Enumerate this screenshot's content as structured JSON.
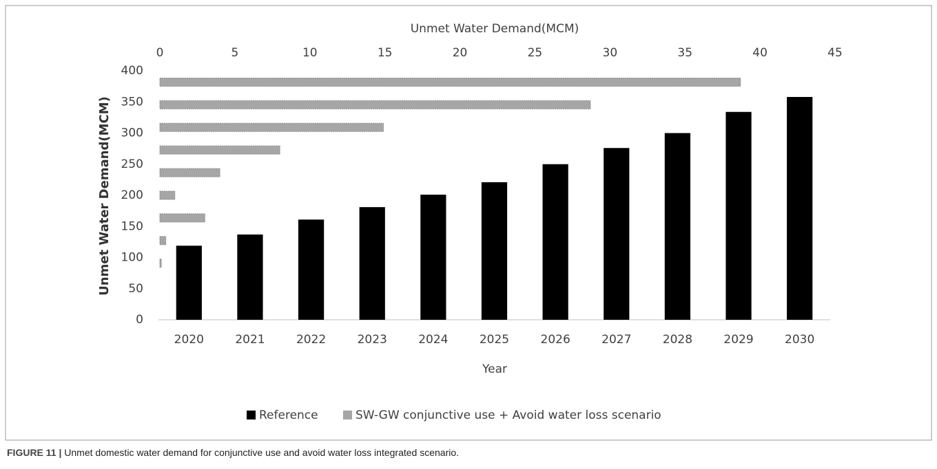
{
  "chart_data": {
    "type": "bar",
    "x2label": "Unmet Water Demand(MCM)",
    "ylabel": "Unmet Water Demand(MCM)",
    "xlabel": "Year",
    "categories": [
      "2020",
      "2021",
      "2022",
      "2023",
      "2024",
      "2025",
      "2026",
      "2027",
      "2028",
      "2029",
      "2030"
    ],
    "series": [
      {
        "name": "Reference",
        "color": "#000000",
        "values": [
          119,
          137,
          161,
          181,
          201,
          221,
          250,
          276,
          300,
          334,
          358
        ]
      },
      {
        "name": "SW-GW conjunctive use + Avoid water loss scenario",
        "color": "#a6a6a6",
        "axis": "x2",
        "values": [
          0,
          0,
          0.1,
          0.4,
          3,
          1,
          4,
          8,
          14.9,
          28.7,
          38.7
        ]
      }
    ],
    "ylim": [
      0,
      400
    ],
    "yticks": [
      0,
      50,
      100,
      150,
      200,
      250,
      300,
      350,
      400
    ],
    "x2lim": [
      0,
      45
    ],
    "x2ticks": [
      0,
      5,
      10,
      15,
      20,
      25,
      30,
      35,
      40,
      45
    ],
    "legend": "bottom"
  },
  "figure_label": "FIGURE 11 |",
  "caption": " Unmet domestic water demand for conjunctive use and avoid water loss integrated scenario."
}
